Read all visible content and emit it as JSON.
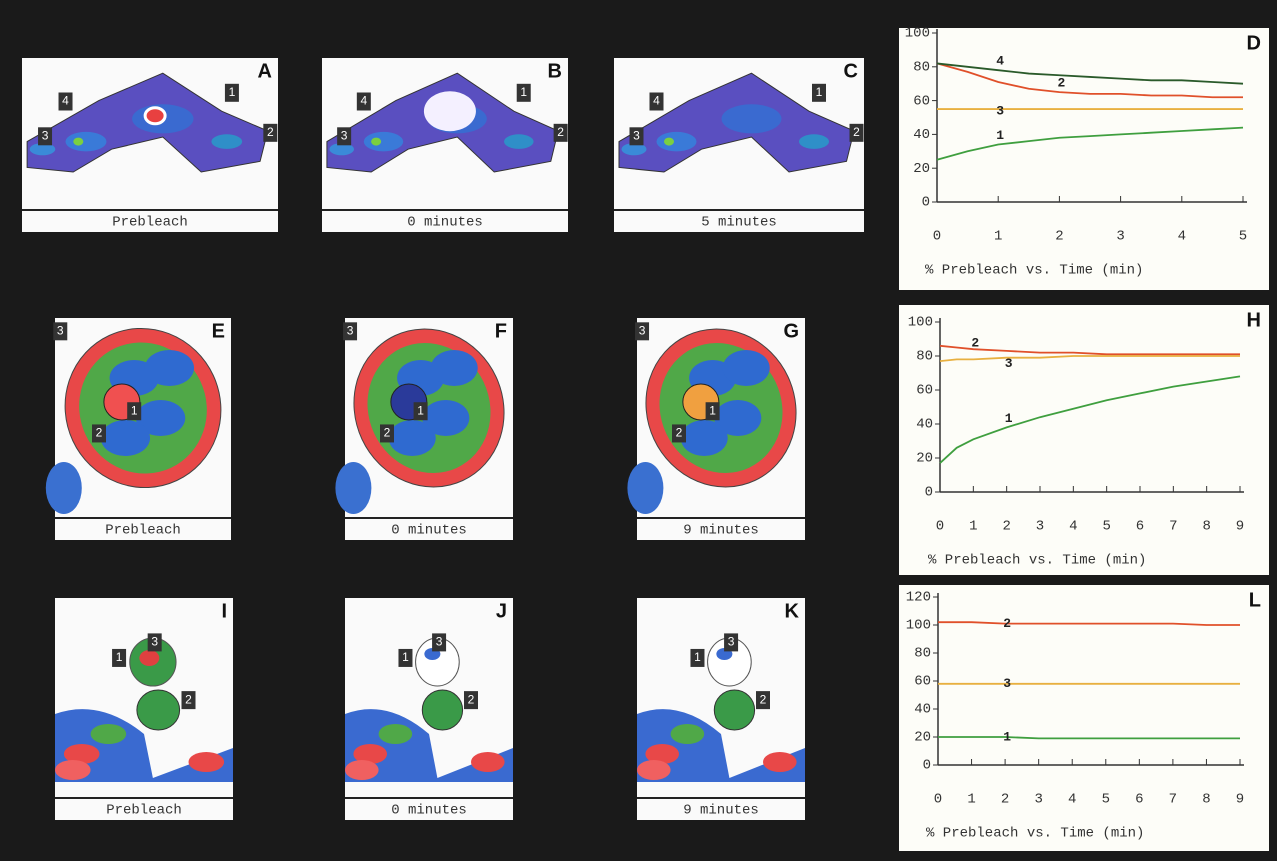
{
  "image_panels": [
    {
      "letter": "A",
      "caption": "Prebleach",
      "roi_labels": [
        "4",
        "3",
        "1",
        "2"
      ]
    },
    {
      "letter": "B",
      "caption": "0 minutes",
      "roi_labels": [
        "4",
        "3",
        "1",
        "2"
      ]
    },
    {
      "letter": "C",
      "caption": "5 minutes",
      "roi_labels": [
        "4",
        "3",
        "1",
        "2"
      ]
    },
    {
      "letter": "E",
      "caption": "Prebleach",
      "roi_labels": [
        "3",
        "2",
        "1"
      ]
    },
    {
      "letter": "F",
      "caption": "0 minutes",
      "roi_labels": [
        "3",
        "2",
        "1"
      ]
    },
    {
      "letter": "G",
      "caption": "9 minutes",
      "roi_labels": [
        "3",
        "2",
        "1"
      ]
    },
    {
      "letter": "I",
      "caption": "Prebleach",
      "roi_labels": [
        "1",
        "3",
        "2"
      ]
    },
    {
      "letter": "J",
      "caption": "0 minutes",
      "roi_labels": [
        "1",
        "3",
        "2"
      ]
    },
    {
      "letter": "K",
      "caption": "9 minutes",
      "roi_labels": [
        "1",
        "3",
        "2"
      ]
    }
  ],
  "chart_data": [
    {
      "type": "line",
      "panel_letter": "D",
      "x_label": "% Prebleach vs. Time (min)",
      "xlim": [
        0,
        5
      ],
      "xticks": [
        0,
        1,
        2,
        3,
        4,
        5
      ],
      "ylim": [
        0,
        100
      ],
      "yticks": [
        0,
        20,
        40,
        60,
        80,
        100
      ],
      "x": [
        0,
        0.5,
        1,
        1.5,
        2,
        2.5,
        3,
        3.5,
        4,
        4.5,
        5
      ],
      "series": [
        {
          "name": "1",
          "color": "#3f9f3f",
          "values": [
            25,
            30,
            34,
            36,
            38,
            39,
            40,
            41,
            42,
            43,
            44
          ]
        },
        {
          "name": "2",
          "color": "#e0502a",
          "values": [
            82,
            77,
            71,
            67,
            65,
            64,
            64,
            63,
            63,
            62,
            62
          ]
        },
        {
          "name": "3",
          "color": "#e8b040",
          "values": [
            55,
            55,
            55,
            55,
            55,
            55,
            55,
            55,
            55,
            55,
            55
          ]
        },
        {
          "name": "4",
          "color": "#2a5a2a",
          "values": [
            82,
            80,
            78,
            76,
            75,
            74,
            73,
            72,
            72,
            71,
            70
          ]
        }
      ]
    },
    {
      "type": "line",
      "panel_letter": "H",
      "x_label": "% Prebleach vs. Time (min)",
      "xlim": [
        0,
        9
      ],
      "xticks": [
        0,
        1,
        2,
        3,
        4,
        5,
        6,
        7,
        8,
        9
      ],
      "ylim": [
        0,
        100
      ],
      "yticks": [
        0,
        20,
        40,
        60,
        80,
        100
      ],
      "x": [
        0,
        0.5,
        1,
        2,
        3,
        4,
        5,
        6,
        7,
        8,
        9
      ],
      "series": [
        {
          "name": "1",
          "color": "#3f9f3f",
          "values": [
            17,
            26,
            31,
            38,
            44,
            49,
            54,
            58,
            62,
            65,
            68
          ]
        },
        {
          "name": "2",
          "color": "#e0502a",
          "values": [
            86,
            85,
            84,
            83,
            82,
            82,
            81,
            81,
            81,
            81,
            81
          ]
        },
        {
          "name": "3",
          "color": "#e8b040",
          "values": [
            77,
            78,
            78,
            79,
            79,
            80,
            80,
            80,
            80,
            80,
            80
          ]
        }
      ]
    },
    {
      "type": "line",
      "panel_letter": "L",
      "x_label": "% Prebleach vs. Time (min)",
      "xlim": [
        0,
        9
      ],
      "xticks": [
        0,
        1,
        2,
        3,
        4,
        5,
        6,
        7,
        8,
        9
      ],
      "ylim": [
        0,
        120
      ],
      "yticks": [
        0,
        20,
        40,
        60,
        80,
        100,
        120
      ],
      "x": [
        0,
        0.5,
        1,
        2,
        3,
        4,
        5,
        6,
        7,
        8,
        9
      ],
      "series": [
        {
          "name": "1",
          "color": "#3f9f3f",
          "values": [
            20,
            20,
            20,
            20,
            19,
            19,
            19,
            19,
            19,
            19,
            19
          ]
        },
        {
          "name": "2",
          "color": "#e0502a",
          "values": [
            102,
            102,
            102,
            101,
            101,
            101,
            101,
            101,
            101,
            100,
            100
          ]
        },
        {
          "name": "3",
          "color": "#e8b040",
          "values": [
            58,
            58,
            58,
            58,
            58,
            58,
            58,
            58,
            58,
            58,
            58
          ]
        }
      ]
    }
  ]
}
